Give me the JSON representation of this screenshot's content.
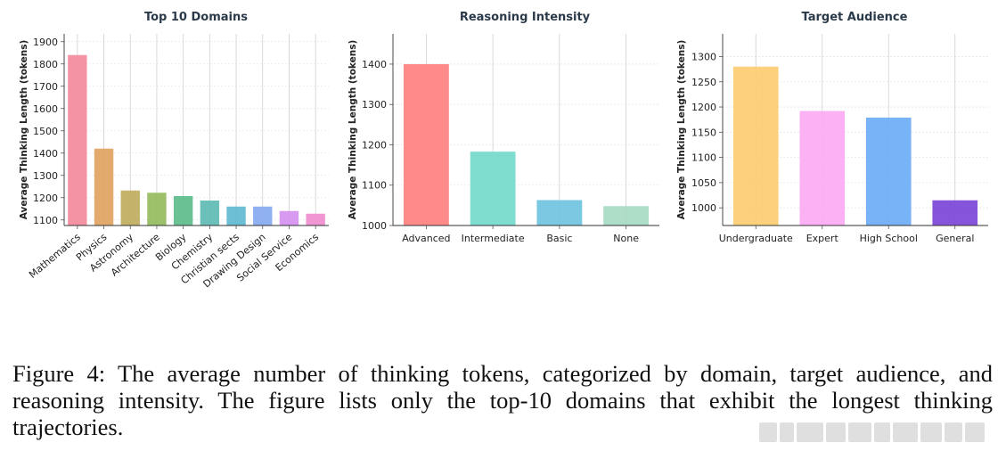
{
  "chart_data": [
    {
      "type": "bar",
      "title": "Top 10 Domains",
      "ylabel": "Average Thinking Length (tokens)",
      "xlabel": "",
      "categories": [
        "Mathematics",
        "Physics",
        "Astronomy",
        "Architecture",
        "Biology",
        "Chemistry",
        "Christian sects",
        "Drawing Design",
        "Social Service",
        "Economics"
      ],
      "values": [
        1840,
        1420,
        1232,
        1222,
        1207,
        1187,
        1160,
        1160,
        1140,
        1128
      ],
      "colors": [
        "#f38a9b",
        "#e0a35f",
        "#c0ac5e",
        "#95bb5e",
        "#5cbc8b",
        "#5ebcb4",
        "#5fbad0",
        "#87aaf0",
        "#d590ef",
        "#f08ccf"
      ],
      "ylim": [
        1075,
        1935
      ],
      "yticks": [
        1100,
        1200,
        1300,
        1400,
        1500,
        1600,
        1700,
        1800,
        1900
      ],
      "rotate_xticks": true,
      "grid": true
    },
    {
      "type": "bar",
      "title": "Reasoning Intensity",
      "ylabel": "Average Thinking Length (tokens)",
      "xlabel": "",
      "categories": [
        "Advanced",
        "Intermediate",
        "Basic",
        "None"
      ],
      "values": [
        1400,
        1183,
        1063,
        1048
      ],
      "colors": [
        "#fe8080",
        "#74dacc",
        "#6fc3df",
        "#a7dac3"
      ],
      "ylim": [
        1000,
        1475
      ],
      "yticks": [
        1000,
        1100,
        1200,
        1300,
        1400
      ],
      "rotate_xticks": false,
      "grid": true
    },
    {
      "type": "bar",
      "title": "Target Audience",
      "ylabel": "Average Thinking Length (tokens)",
      "xlabel": "",
      "categories": [
        "Undergraduate",
        "Expert",
        "High School",
        "General"
      ],
      "values": [
        1280,
        1192,
        1179,
        1015
      ],
      "colors": [
        "#fdcd70",
        "#fdaaf4",
        "#6cadf6",
        "#7a46d8"
      ],
      "ylim": [
        965,
        1345
      ],
      "yticks": [
        1000,
        1050,
        1100,
        1150,
        1200,
        1250,
        1300
      ],
      "rotate_xticks": false,
      "grid": true
    }
  ],
  "caption": {
    "lines": [
      "Figure 4:  The average number of thinking tokens, categorized by domain, target audience, and",
      "reasoning intensity.  The figure lists only the top-10 domains that exhibit the longest thinking",
      "trajectories."
    ]
  }
}
